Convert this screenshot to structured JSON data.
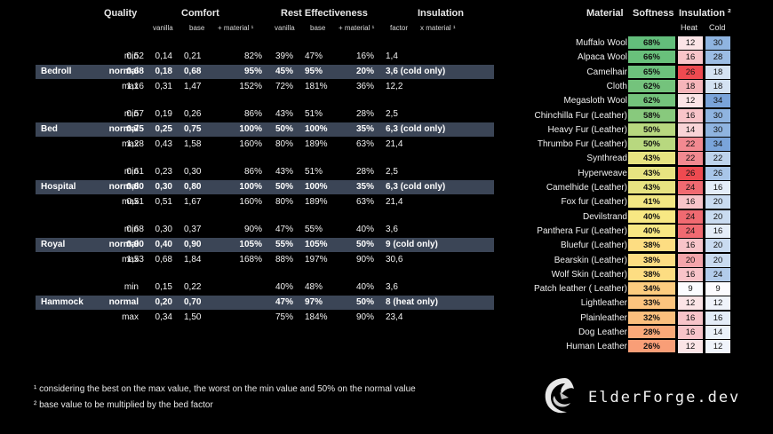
{
  "left_table": {
    "headers": {
      "quality": "Quality",
      "comfort": "Comfort",
      "rest": "Rest Effectiveness",
      "insulation": "Insulation"
    },
    "subheaders": {
      "comfort_vanilla": "vanilla",
      "comfort_base": "base",
      "comfort_material": "+ material ¹",
      "rest_vanilla": "vanilla",
      "rest_base": "base",
      "rest_material": "+ material ¹",
      "ins_factor": "factor",
      "ins_material": "x material ¹"
    },
    "groups": [
      {
        "name": "Bedroll",
        "rows": [
          {
            "q": "min",
            "cv": "0,52",
            "cb": "0,14",
            "cm": "0,21",
            "rv": "82%",
            "rb": "39%",
            "rm": "47%",
            "f": "16%",
            "im": "1,4"
          },
          {
            "q": "normal",
            "cv": "0,68",
            "cb": "0,18",
            "cm": "0,68",
            "rv": "95%",
            "rb": "45%",
            "rm": "95%",
            "f": "20%",
            "im": "3,6 (cold only)"
          },
          {
            "q": "max",
            "cv": "1,16",
            "cb": "0,31",
            "cm": "1,47",
            "rv": "152%",
            "rb": "72%",
            "rm": "181%",
            "f": "36%",
            "im": "12,2"
          }
        ]
      },
      {
        "name": "Bed",
        "rows": [
          {
            "q": "min",
            "cv": "0,57",
            "cb": "0,19",
            "cm": "0,26",
            "rv": "86%",
            "rb": "43%",
            "rm": "51%",
            "f": "28%",
            "im": "2,5"
          },
          {
            "q": "normal",
            "cv": "0,75",
            "cb": "0,25",
            "cm": "0,75",
            "rv": "100%",
            "rb": "50%",
            "rm": "100%",
            "f": "35%",
            "im": "6,3 (cold only)"
          },
          {
            "q": "max",
            "cv": "1,28",
            "cb": "0,43",
            "cm": "1,58",
            "rv": "160%",
            "rb": "80%",
            "rm": "189%",
            "f": "63%",
            "im": "21,4"
          }
        ]
      },
      {
        "name": "Hospital",
        "rows": [
          {
            "q": "min",
            "cv": "0,61",
            "cb": "0,23",
            "cm": "0,30",
            "rv": "86%",
            "rb": "43%",
            "rm": "51%",
            "f": "28%",
            "im": "2,5"
          },
          {
            "q": "normal",
            "cv": "0,80",
            "cb": "0,30",
            "cm": "0,80",
            "rv": "100%",
            "rb": "50%",
            "rm": "100%",
            "f": "35%",
            "im": "6,3 (cold only)"
          },
          {
            "q": "max",
            "cv": "0,51",
            "cb": "0,51",
            "cm": "1,67",
            "rv": "160%",
            "rb": "80%",
            "rm": "189%",
            "f": "63%",
            "im": "21,4"
          }
        ]
      },
      {
        "name": "Royal",
        "rows": [
          {
            "q": "min",
            "cv": "0,68",
            "cb": "0,30",
            "cm": "0,37",
            "rv": "90%",
            "rb": "47%",
            "rm": "55%",
            "f": "40%",
            "im": "3,6"
          },
          {
            "q": "normal",
            "cv": "0,90",
            "cb": "0,40",
            "cm": "0,90",
            "rv": "105%",
            "rb": "55%",
            "rm": "105%",
            "f": "50%",
            "im": "9 (cold only)"
          },
          {
            "q": "max",
            "cv": "1,53",
            "cb": "0,68",
            "cm": "1,84",
            "rv": "168%",
            "rb": "88%",
            "rm": "197%",
            "f": "90%",
            "im": "30,6"
          }
        ]
      },
      {
        "name": "Hammock",
        "rows": [
          {
            "q": "min",
            "cv": "",
            "cb": "0,15",
            "cm": "0,22",
            "rv": "",
            "rb": "40%",
            "rm": "48%",
            "f": "40%",
            "im": "3,6"
          },
          {
            "q": "normal",
            "cv": "",
            "cb": "0,20",
            "cm": "0,70",
            "rv": "",
            "rb": "47%",
            "rm": "97%",
            "f": "50%",
            "im": "8 (heat only)"
          },
          {
            "q": "max",
            "cv": "",
            "cb": "0,34",
            "cm": "1,50",
            "rv": "",
            "rb": "75%",
            "rm": "184%",
            "f": "90%",
            "im": "23,4"
          }
        ]
      }
    ]
  },
  "material_table": {
    "headers": {
      "material": "Material",
      "softness": "Softness",
      "insulation": "Insulation ²",
      "heat": "Heat",
      "cold": "Cold"
    },
    "rows": [
      {
        "name": "Muffalo Wool",
        "soft": "68%",
        "heat": "12",
        "cold": "30",
        "sc": "#63be7b",
        "hc": "#fbe4e6",
        "cc": "#8fb4e0"
      },
      {
        "name": "Alpaca Wool",
        "soft": "66%",
        "heat": "16",
        "cold": "28",
        "sc": "#69c07b",
        "hc": "#f8c4c9",
        "cc": "#9cbde4"
      },
      {
        "name": "Camelhair",
        "soft": "65%",
        "heat": "26",
        "cold": "18",
        "sc": "#6cc17c",
        "hc": "#ee4a50",
        "cc": "#d4e2f2"
      },
      {
        "name": "Cloth",
        "soft": "62%",
        "heat": "18",
        "cold": "18",
        "sc": "#74c37c",
        "hc": "#f6b5ba",
        "cc": "#d4e2f2"
      },
      {
        "name": "Megasloth Wool",
        "soft": "62%",
        "heat": "12",
        "cold": "34",
        "sc": "#74c37c",
        "hc": "#fbe4e6",
        "cc": "#7aa4da"
      },
      {
        "name": "Chinchilla Fur (Leather)",
        "soft": "58%",
        "heat": "16",
        "cold": "30",
        "sc": "#88c97d",
        "hc": "#f8c4c9",
        "cc": "#8fb4e0"
      },
      {
        "name": "Heavy Fur (Leather)",
        "soft": "50%",
        "heat": "14",
        "cold": "30",
        "sc": "#b8d87f",
        "hc": "#f9d4d7",
        "cc": "#8fb4e0"
      },
      {
        "name": "Thrumbo Fur (Leather)",
        "soft": "50%",
        "heat": "22",
        "cold": "34",
        "sc": "#b8d87f",
        "hc": "#f28990",
        "cc": "#7aa4da"
      },
      {
        "name": "Synthread",
        "soft": "43%",
        "heat": "22",
        "cold": "22",
        "sc": "#e7e381",
        "hc": "#f28990",
        "cc": "#bdd3ec"
      },
      {
        "name": "Hyperweave",
        "soft": "43%",
        "heat": "26",
        "cold": "26",
        "sc": "#e7e381",
        "hc": "#ee4a50",
        "cc": "#a8c5e8"
      },
      {
        "name": "Camelhide (Leather)",
        "soft": "43%",
        "heat": "24",
        "cold": "16",
        "sc": "#e7e381",
        "hc": "#f06a71",
        "cc": "#e4edf8"
      },
      {
        "name": "Fox fur (Leather)",
        "soft": "41%",
        "heat": "16",
        "cold": "20",
        "sc": "#f2e783",
        "hc": "#f8c4c9",
        "cc": "#c9dbf0"
      },
      {
        "name": "Devilstrand",
        "soft": "40%",
        "heat": "24",
        "cold": "20",
        "sc": "#f7e883",
        "hc": "#f06a71",
        "cc": "#c9dbf0"
      },
      {
        "name": "Panthera Fur (Leather)",
        "soft": "40%",
        "heat": "24",
        "cold": "16",
        "sc": "#f7e883",
        "hc": "#f06a71",
        "cc": "#e4edf8"
      },
      {
        "name": "Bluefur (Leather)",
        "soft": "38%",
        "heat": "16",
        "cold": "20",
        "sc": "#fddd82",
        "hc": "#f8c4c9",
        "cc": "#c9dbf0"
      },
      {
        "name": "Bearskin (Leather)",
        "soft": "38%",
        "heat": "20",
        "cold": "20",
        "sc": "#fddd82",
        "hc": "#f4a4aa",
        "cc": "#c9dbf0"
      },
      {
        "name": "Wolf Skin (Leather)",
        "soft": "38%",
        "heat": "16",
        "cold": "24",
        "sc": "#fddd82",
        "hc": "#f8c4c9",
        "cc": "#b2cbea"
      },
      {
        "name": "Patch leather ( Leather)",
        "soft": "34%",
        "heat": "9",
        "cold": "9",
        "sc": "#fccc7f",
        "hc": "#fcfcff",
        "cc": "#fcfcff"
      },
      {
        "name": "Lightleather",
        "soft": "33%",
        "heat": "12",
        "cold": "12",
        "sc": "#fcc47e",
        "hc": "#fbe4e6",
        "cc": "#f0f4fb"
      },
      {
        "name": "Plainleather",
        "soft": "32%",
        "heat": "16",
        "cold": "16",
        "sc": "#fbbf7d",
        "hc": "#f8c4c9",
        "cc": "#e4edf8"
      },
      {
        "name": "Dog Leather",
        "soft": "28%",
        "heat": "16",
        "cold": "14",
        "sc": "#faa979",
        "hc": "#f8c4c9",
        "cc": "#eaf1f9"
      },
      {
        "name": "Human Leather",
        "soft": "26%",
        "heat": "12",
        "cold": "12",
        "sc": "#f99e77",
        "hc": "#fbe4e6",
        "cc": "#f0f4fb"
      }
    ]
  },
  "footnotes": {
    "note1": "¹ considering the best on the max value, the worst on the min value and 50% on the normal value",
    "note2": "² base value to be multiplied by the bed factor"
  },
  "logo": {
    "text": "ElderForge.dev",
    "icon": "dragon-swirl-icon"
  }
}
